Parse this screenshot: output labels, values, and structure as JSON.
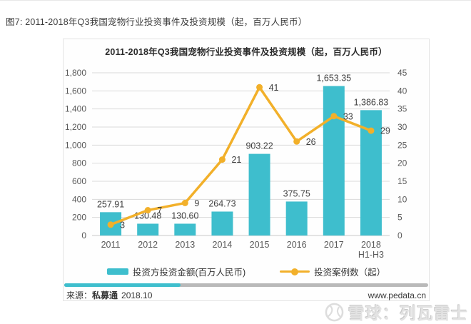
{
  "page": {
    "caption": "图7: 2011-2018年Q3我国宠物行业投资事件及投资规模（起，百万人民币）",
    "scrollbar_thumb_percent": 32
  },
  "chart_data": {
    "type": "bar",
    "title": "2011-2018年Q3我国宠物行业投资事件及投资规模（起，百万人民币）",
    "categories": [
      "2011",
      "2012",
      "2013",
      "2014",
      "2015",
      "2016",
      "2017",
      "2018"
    ],
    "last_category_line2": "H1-H3",
    "series": [
      {
        "name": "投资方投资金额(百万人民币)",
        "type": "bar",
        "axis": "left",
        "color": "#3ebecd",
        "values": [
          257.91,
          130.48,
          130.6,
          264.73,
          903.22,
          375.75,
          1653.35,
          1386.83
        ],
        "labels": [
          "257.91",
          "130.48",
          "130.60",
          "264.73",
          "903.22",
          "375.75",
          "1,653.35",
          "1,386.83"
        ]
      },
      {
        "name": "投资案例数（起）",
        "type": "line",
        "axis": "right",
        "color": "#f2b02a",
        "values": [
          3,
          7,
          9,
          21,
          41,
          26,
          33,
          29
        ],
        "labels": [
          "3",
          "7",
          "9",
          "21",
          "41",
          "26",
          "33",
          "29"
        ]
      }
    ],
    "left_axis": {
      "min": 0,
      "max": 1800,
      "step": 200,
      "ticks": [
        "0",
        "200",
        "400",
        "600",
        "800",
        "1,000",
        "1,200",
        "1,400",
        "1,600",
        "1,800"
      ]
    },
    "right_axis": {
      "min": 0,
      "max": 45,
      "step": 5,
      "ticks": [
        "0",
        "5",
        "10",
        "15",
        "20",
        "25",
        "30",
        "35",
        "40",
        "45"
      ]
    },
    "grid": true,
    "legend_position": "bottom"
  },
  "footer": {
    "source_prefix": "来源：",
    "source_name": "私募通",
    "source_date": "2018.10",
    "website": "www.pedata.cn"
  },
  "watermark": {
    "text": "雪球：列瓦雷士",
    "logo": "xueqiu-snowball-icon"
  },
  "colors": {
    "bar": "#3ebecd",
    "line": "#f2b02a",
    "gridline": "#d9d9d9",
    "axis_text": "#595959",
    "data_label": "#3f3f3f"
  }
}
